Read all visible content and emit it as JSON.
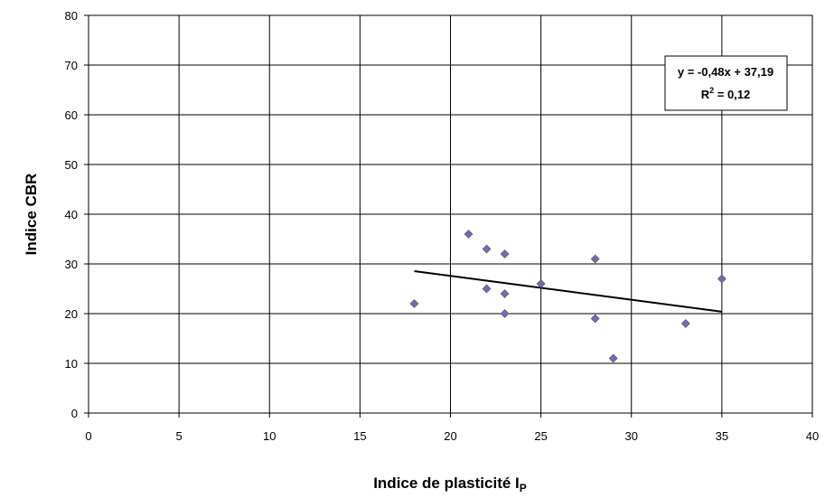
{
  "chart_data": {
    "type": "scatter",
    "xlabel": "Indice de plasticité I",
    "xlabel_sub": "P",
    "ylabel": "Indice CBR",
    "xlim": [
      0,
      40
    ],
    "ylim": [
      0,
      80
    ],
    "xticks": [
      0,
      5,
      10,
      15,
      20,
      25,
      30,
      35,
      40
    ],
    "yticks": [
      0,
      10,
      20,
      30,
      40,
      50,
      60,
      70,
      80
    ],
    "grid": true,
    "marker_color": "#6f6fa8",
    "trendline_color": "#000000",
    "series": [
      {
        "x": [
          18,
          21,
          22,
          22,
          23,
          23,
          23,
          25,
          28,
          28,
          29,
          33,
          35
        ],
        "y": [
          22,
          36,
          33,
          25,
          32,
          24,
          20,
          26,
          31,
          19,
          11,
          18,
          27
        ]
      }
    ],
    "trendline": {
      "slope": -0.48,
      "intercept": 37.19,
      "x_range": [
        18,
        35
      ],
      "equation": "y = -0,48x + 37,19",
      "r2_prefix": "R",
      "r2_exp": "2",
      "r2_value": " = 0,12"
    }
  }
}
